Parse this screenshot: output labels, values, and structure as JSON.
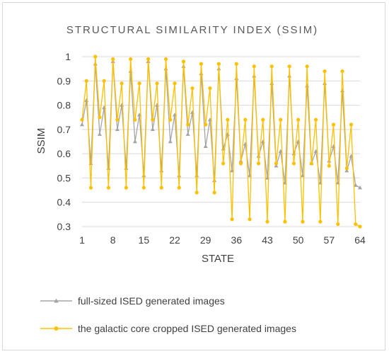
{
  "chart_data": {
    "type": "line",
    "title": "STRUCTURAL SIMILARITY INDEX (SSIM)",
    "xlabel": "STATE",
    "ylabel": "SSIM",
    "ylim": [
      0.3,
      1.0
    ],
    "yticks": [
      "0.3",
      "0.4",
      "0.5",
      "0.6",
      "0.7",
      "0.8",
      "0.9",
      "1"
    ],
    "xlim": [
      1,
      64
    ],
    "xticks": [
      "1",
      "8",
      "15",
      "22",
      "29",
      "36",
      "43",
      "50",
      "57",
      "64"
    ],
    "grid": true,
    "legend_position": "bottom",
    "series": [
      {
        "name": "full-sized ISED generated images",
        "color": "#a5a5a5",
        "marker": "triangle",
        "x": [
          1,
          2,
          3,
          4,
          5,
          6,
          7,
          8,
          9,
          10,
          11,
          12,
          13,
          14,
          15,
          16,
          17,
          18,
          19,
          20,
          21,
          22,
          23,
          24,
          25,
          26,
          27,
          28,
          29,
          30,
          31,
          32,
          33,
          34,
          35,
          36,
          37,
          38,
          39,
          40,
          41,
          42,
          43,
          44,
          45,
          46,
          47,
          48,
          49,
          50,
          51,
          52,
          53,
          54,
          55,
          56,
          57,
          58,
          59,
          60,
          61,
          62,
          63,
          64
        ],
        "y": [
          0.72,
          0.82,
          0.56,
          0.97,
          0.68,
          0.79,
          0.54,
          0.98,
          0.7,
          0.8,
          0.54,
          0.94,
          0.65,
          0.76,
          0.51,
          0.98,
          0.7,
          0.8,
          0.53,
          0.95,
          0.65,
          0.76,
          0.51,
          0.96,
          0.68,
          0.77,
          0.51,
          0.93,
          0.63,
          0.74,
          0.49,
          0.95,
          0.62,
          0.68,
          0.53,
          0.91,
          0.57,
          0.64,
          0.51,
          0.92,
          0.59,
          0.65,
          0.5,
          0.89,
          0.55,
          0.61,
          0.48,
          0.92,
          0.6,
          0.65,
          0.51,
          0.88,
          0.56,
          0.61,
          0.48,
          0.89,
          0.57,
          0.63,
          0.48,
          0.86,
          0.53,
          0.59,
          0.47,
          0.46
        ]
      },
      {
        "name": "the galactic core cropped ISED generated images",
        "color": "#ffc000",
        "marker": "circle",
        "x": [
          1,
          2,
          3,
          4,
          5,
          6,
          7,
          8,
          9,
          10,
          11,
          12,
          13,
          14,
          15,
          16,
          17,
          18,
          19,
          20,
          21,
          22,
          23,
          24,
          25,
          26,
          27,
          28,
          29,
          30,
          31,
          32,
          33,
          34,
          35,
          36,
          37,
          38,
          39,
          40,
          41,
          42,
          43,
          44,
          45,
          46,
          47,
          48,
          49,
          50,
          51,
          52,
          53,
          54,
          55,
          56,
          57,
          58,
          59,
          60,
          61,
          62,
          63,
          64
        ],
        "y": [
          0.74,
          0.9,
          0.46,
          1.0,
          0.75,
          0.9,
          0.46,
          0.99,
          0.74,
          0.89,
          0.46,
          0.99,
          0.74,
          0.89,
          0.46,
          0.99,
          0.74,
          0.89,
          0.46,
          0.99,
          0.74,
          0.89,
          0.46,
          0.98,
          0.72,
          0.87,
          0.44,
          0.97,
          0.72,
          0.87,
          0.44,
          0.97,
          0.56,
          0.74,
          0.33,
          0.97,
          0.56,
          0.74,
          0.33,
          0.96,
          0.56,
          0.74,
          0.32,
          0.96,
          0.56,
          0.74,
          0.32,
          0.96,
          0.56,
          0.74,
          0.32,
          0.96,
          0.56,
          0.74,
          0.32,
          0.94,
          0.55,
          0.72,
          0.31,
          0.94,
          0.54,
          0.72,
          0.31,
          0.3
        ]
      }
    ]
  }
}
